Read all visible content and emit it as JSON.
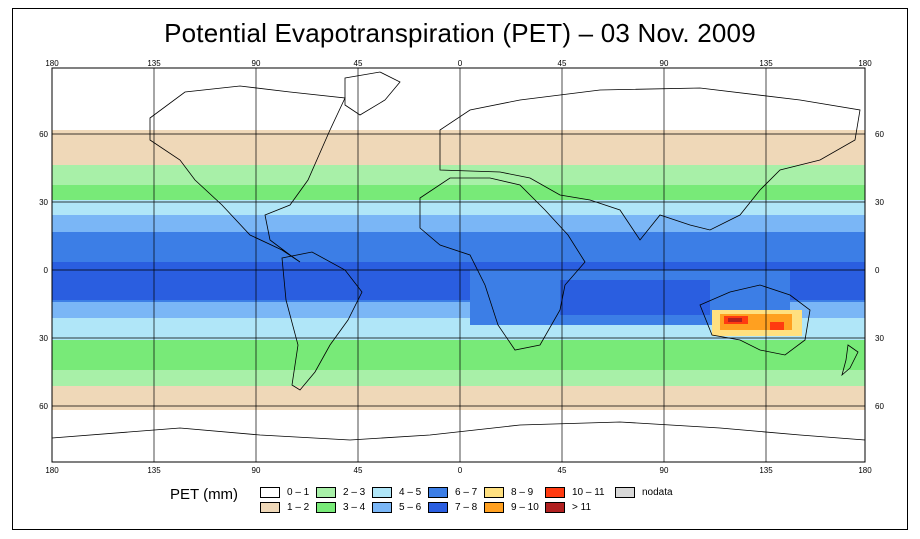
{
  "title": "Potential Evapotranspiration (PET) – 03 Nov. 2009",
  "map": {
    "lon_ticks": [
      "180",
      "135",
      "90",
      "45",
      "0",
      "45",
      "90",
      "135",
      "180"
    ],
    "lat_ticks": [
      "60",
      "30",
      "0",
      "30",
      "60"
    ],
    "ocean_color": "#ffffff",
    "land_outline_color": "#000000"
  },
  "legend": {
    "title": "PET (mm)",
    "items": [
      {
        "label": "0 – 1",
        "color": "#ffffff"
      },
      {
        "label": "1 – 2",
        "color": "#efd8b8"
      },
      {
        "label": "2 – 3",
        "color": "#a8f0a8"
      },
      {
        "label": "3 – 4",
        "color": "#78ea78"
      },
      {
        "label": "4 – 5",
        "color": "#b0e6f8"
      },
      {
        "label": "5 – 6",
        "color": "#7ab6f6"
      },
      {
        "label": "6 – 7",
        "color": "#3c7ee6"
      },
      {
        "label": "7 – 8",
        "color": "#2a5ee0"
      },
      {
        "label": "8 – 9",
        "color": "#ffe080"
      },
      {
        "label": "9 – 10",
        "color": "#ffa020"
      },
      {
        "label": "10 – 11",
        "color": "#ff3a10"
      },
      {
        "label": "> 11",
        "color": "#b02020"
      },
      {
        "label": "nodata",
        "color": "#d8d8d8"
      }
    ]
  }
}
